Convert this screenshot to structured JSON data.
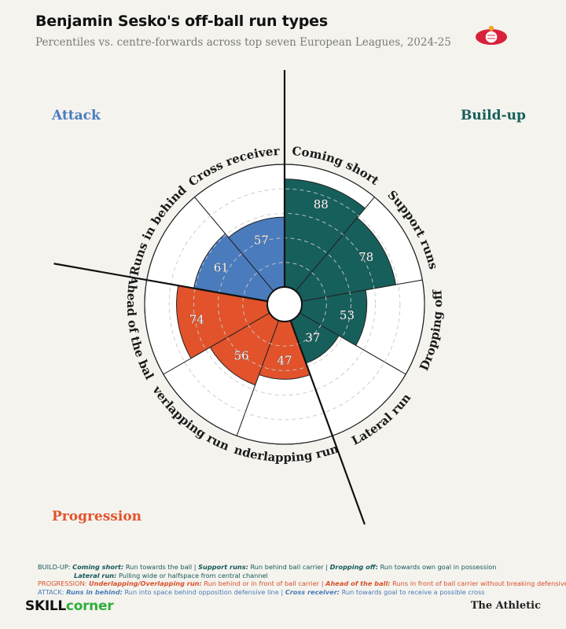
{
  "header": {
    "title": "Benjamin Sesko's off-ball run types",
    "subtitle": "Percentiles vs. centre-forwards across top seven European Leagues, 2024-25"
  },
  "colors": {
    "build_up": "#165f5b",
    "progression": "#e2532b",
    "attack": "#4a7bbd",
    "background": "#f4f3ee"
  },
  "chart_data": {
    "type": "polar-bar",
    "rlim": [
      0,
      100
    ],
    "grid": true,
    "groups": [
      {
        "name": "Build-up",
        "color": "#165f5b",
        "label_color": "#165f5b"
      },
      {
        "name": "Progression",
        "color": "#e2532b",
        "label_color": "#e2532b"
      },
      {
        "name": "Attack",
        "color": "#4a7bbd",
        "label_color": "#4a7bbd"
      }
    ],
    "categories": [
      {
        "label": "Coming short",
        "value": 88,
        "group": "Build-up"
      },
      {
        "label": "Support runs",
        "value": 78,
        "group": "Build-up"
      },
      {
        "label": "Dropping off",
        "value": 53,
        "group": "Build-up"
      },
      {
        "label": "Lateral run",
        "value": 37,
        "group": "Build-up"
      },
      {
        "label": "Underlapping runs",
        "value": 47,
        "group": "Progression"
      },
      {
        "label": "Overlapping runs",
        "value": 56,
        "group": "Progression"
      },
      {
        "label": "Ahead of the ball",
        "value": 74,
        "group": "Progression"
      },
      {
        "label": "Runs in behind",
        "value": 61,
        "group": "Attack"
      },
      {
        "label": "Cross receiver",
        "value": 57,
        "group": "Attack"
      }
    ]
  },
  "notes": {
    "build_prefix": "BUILD-UP:",
    "coming_short_k": "Coming short:",
    "coming_short_d": "Run towards the ball",
    "support_k": "Support runs:",
    "support_d": "Run behind ball carrier",
    "dropping_k": "Dropping off:",
    "dropping_d": "Run towards own goal in possession",
    "lateral_k": "Lateral run:",
    "lateral_d": "Pulling wide or halfspace from central channel",
    "prog_prefix": "PROGRESSION:",
    "overlap_k": "Underlapping/Overlapping run:",
    "overlap_d": "Run behind or in front of ball carrier",
    "ahead_k": "Ahead of the ball:",
    "ahead_d": "Runs in front of ball carrier without breaking defensive line",
    "att_prefix": "ATTACK:",
    "behind_k": "Runs in behind:",
    "behind_d": "Run into space behind opposition defensive line",
    "cross_k": "Cross receiver:",
    "cross_d": "Run towards goal to receive a possible cross",
    "sep": "|"
  },
  "footer": {
    "brand_left_a": "SKILL",
    "brand_left_b": "corner",
    "brand_right": "The Athletic"
  },
  "logo": {
    "icon": "club-crest-icon"
  }
}
